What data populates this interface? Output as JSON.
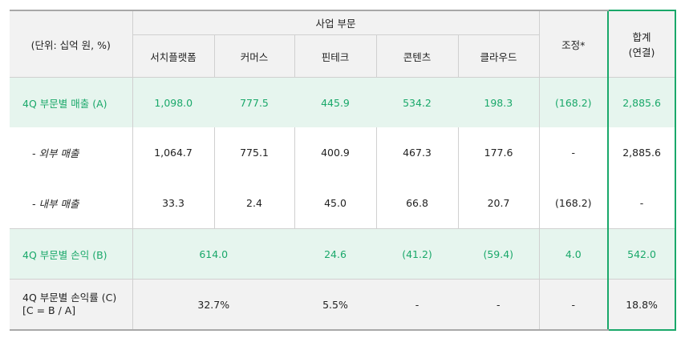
{
  "header": {
    "unit": "(단위: 십억 원, %)",
    "group": "사업 부문",
    "segments": [
      "서치플랫폼",
      "커머스",
      "핀테크",
      "콘텐츠",
      "클라우드"
    ],
    "adjust": "조정*",
    "total_line1": "합계",
    "total_line2": "(연결)"
  },
  "rows": {
    "revenue": {
      "label": "4Q 부문별 매출 (A)",
      "values": [
        "1,098.0",
        "777.5",
        "445.9",
        "534.2",
        "198.3"
      ],
      "adjust": "(168.2)",
      "total": "2,885.6"
    },
    "external": {
      "label": "- 외부 매출",
      "values": [
        "1,064.7",
        "775.1",
        "400.9",
        "467.3",
        "177.6"
      ],
      "adjust": "-",
      "total": "2,885.6"
    },
    "internal": {
      "label": "- 내부 매출",
      "values": [
        "33.3",
        "2.4",
        "45.0",
        "66.8",
        "20.7"
      ],
      "adjust": "(168.2)",
      "total": "-"
    },
    "profit": {
      "label": "4Q 부문별 손익 (B)",
      "search_commerce": "614.0",
      "values": [
        "24.6",
        "(41.2)",
        "(59.4)"
      ],
      "adjust": "4.0",
      "total": "542.0"
    },
    "margin": {
      "label_line1": "4Q 부문별 손익률 (C)",
      "label_line2": "[C = B / A]",
      "search_commerce": "32.7%",
      "values": [
        "5.5%",
        "-",
        "-"
      ],
      "adjust": "-",
      "total": "18.8%"
    }
  },
  "colors": {
    "accent_green": "#1aa86a",
    "highlight_row_bg": "#e6f5ee",
    "header_bg": "#f2f2f2"
  }
}
